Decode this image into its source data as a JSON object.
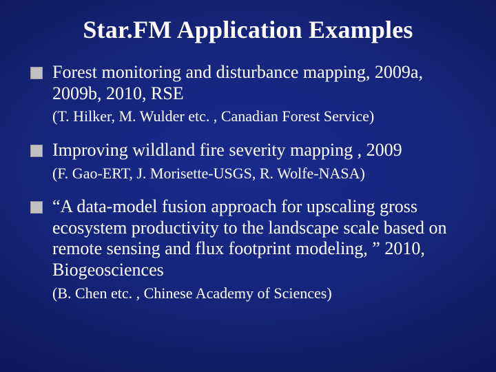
{
  "slide": {
    "background_gradient": {
      "type": "radial",
      "stops": [
        "#1a2a8c",
        "#16247a",
        "#0d1658",
        "#070c38"
      ]
    },
    "title": "Star.FM Application Examples",
    "title_fontsize": 36,
    "title_color": "#ffffff",
    "bullet_color": "#c0c0c0",
    "text_color": "#ffffff",
    "main_fontsize": 26,
    "sub_fontsize": 22,
    "font_family": "Garamond",
    "items": [
      {
        "main": "Forest monitoring and disturbance mapping, 2009a, 2009b, 2010, RSE",
        "sub": "(T. Hilker, M. Wulder etc. , Canadian Forest Service)"
      },
      {
        "main": "Improving wildland fire severity mapping , 2009",
        "sub": "(F. Gao-ERT, J. Morisette-USGS, R. Wolfe-NASA)"
      },
      {
        "main": "“A data-model fusion approach for upscaling gross ecosystem productivity to the landscape scale based on remote sensing and flux footprint modeling, ” 2010, Biogeosciences",
        "sub": "(B. Chen etc. , Chinese Academy of Sciences)"
      }
    ]
  }
}
